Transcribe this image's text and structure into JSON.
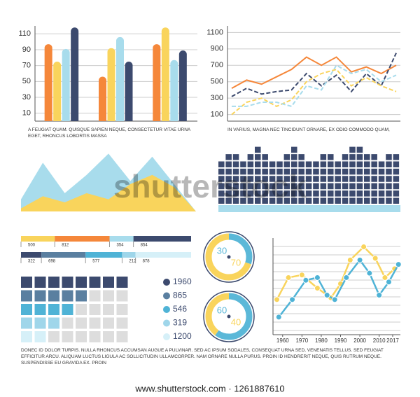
{
  "chart_data": [
    {
      "type": "bar",
      "caption": "A FEUGIAT QUAM. QUISQUE SAPIEN NEQUE, CONSECTETUR VITAE URNA EGET, RHONCUS LOBORTIS MASSA",
      "categories": [
        null,
        null,
        null
      ],
      "series": [
        {
          "color": "#f5873a",
          "values": [
            97,
            56,
            97
          ]
        },
        {
          "color": "#f9d45c",
          "values": [
            75,
            92,
            118
          ]
        },
        {
          "color": "#a8dcec",
          "values": [
            91,
            106,
            77
          ]
        },
        {
          "color": "#3c4a6e",
          "values": [
            118,
            75,
            89
          ]
        }
      ],
      "ylim": [
        0,
        120
      ],
      "yticks": [
        10,
        30,
        50,
        70,
        90,
        110
      ],
      "grid": true
    },
    {
      "type": "line",
      "caption": "IN VARIUS, MAGNA NEC TINCIDUNT ORNARE, EX ODIO COMMODO QUAM,",
      "series": [
        {
          "color": "#f5873a",
          "dashed": false,
          "values": [
            420,
            520,
            470,
            560,
            650,
            800,
            700,
            800,
            620,
            680,
            600,
            700
          ]
        },
        {
          "color": "#3c4a6e",
          "dashed": true,
          "values": [
            320,
            420,
            350,
            380,
            400,
            600,
            450,
            580,
            380,
            600,
            450,
            850
          ]
        },
        {
          "color": "#f9d45c",
          "dashed": true,
          "values": [
            100,
            250,
            300,
            200,
            280,
            500,
            600,
            650,
            450,
            550,
            450,
            380
          ]
        },
        {
          "color": "#a8dcec",
          "dashed": true,
          "values": [
            200,
            200,
            250,
            250,
            200,
            450,
            400,
            700,
            600,
            650,
            500,
            580
          ]
        }
      ],
      "ylim": [
        20,
        1180
      ],
      "yticks": [
        100,
        300,
        500,
        700,
        900,
        1100
      ],
      "grid": true
    },
    {
      "type": "area",
      "series": [
        {
          "color": "#a8dcec",
          "values": [
            20,
            80,
            30,
            60,
            95,
            50,
            90,
            45,
            0
          ]
        },
        {
          "color": "#f9d45c",
          "values": [
            5,
            25,
            15,
            30,
            20,
            45,
            60,
            40,
            0
          ]
        }
      ],
      "ylim": [
        0,
        100
      ]
    },
    {
      "type": "blocks",
      "color": "#3c4a6e",
      "base_color": "#a8dcec",
      "values": [
        6,
        7,
        7,
        6,
        7,
        8,
        7,
        6,
        6,
        7,
        8,
        7,
        6,
        6,
        7,
        7,
        6,
        7,
        8,
        8,
        7,
        7,
        6,
        7,
        7
      ]
    },
    {
      "type": "stacked_bar",
      "bars": [
        {
          "values": [
            500,
            812,
            354,
            854
          ],
          "colors": [
            "#f9d45c",
            "#f5873a",
            "#a8dcec",
            "#3c4a6e"
          ]
        },
        {
          "values": [
            322,
            698,
            577,
            212,
            878
          ],
          "colors": [
            "#3c4a6e",
            "#5a7fa0",
            "#4fb3d6",
            "#9fd6ea",
            "#d6f0f8"
          ]
        }
      ]
    },
    {
      "type": "waffle",
      "columns": 8,
      "values": [
        1960,
        865,
        546,
        319,
        1200
      ],
      "squares": [
        8,
        5,
        4,
        3,
        2
      ],
      "colors": [
        "#3c4a6e",
        "#5a7fa0",
        "#4fb3d6",
        "#9fd6ea",
        "#d6f0f8"
      ]
    },
    {
      "type": "donut",
      "values": [
        30,
        70
      ],
      "colors": [
        "#5bb8d8",
        "#f9d45c"
      ]
    },
    {
      "type": "donut",
      "values": [
        60,
        40
      ],
      "colors": [
        "#5bb8d8",
        "#f9d45c"
      ]
    },
    {
      "type": "xyline",
      "series": [
        {
          "color": "#f9d45c",
          "x": [
            1957,
            1963,
            1970,
            1978,
            1985,
            1990,
            1995,
            2002,
            2008,
            2013,
            2018
          ],
          "values": [
            4,
            6.5,
            6.8,
            5.3,
            4.2,
            5.8,
            8.5,
            10,
            8.7,
            6.5,
            7.5
          ]
        },
        {
          "color": "#4fb3d6",
          "x": [
            1958,
            1965,
            1972,
            1978,
            1983,
            1987,
            1993,
            2000,
            2005,
            2010,
            2015,
            2020
          ],
          "values": [
            2,
            4,
            6.2,
            6.5,
            4.5,
            4,
            6.5,
            8.5,
            7,
            4.5,
            6,
            8
          ]
        }
      ],
      "xlim": [
        1955,
        2021
      ],
      "xticks": [
        1960,
        1970,
        1980,
        1990,
        2000,
        2010,
        2017
      ],
      "ylim": [
        0,
        11
      ],
      "grid": true
    }
  ],
  "footer": "DONEC ID DOLOR TURPIS. NULLA RHONCUS ACCUMSAN AUGUE A PULVINAR. SED AC IPSUM SODALES, CONSEQUAT URNA SED, VENENATIS TELLUS. SED FEUGIAT EFFICITUR ARCU. ALIQUAM LUCTUS LIGULA AC SOLLICITUDIN ULLAMCORPER. NAM ORNARE NULLA PURUS. PROIN ID HENDRERIT NEQUE, QUIS RUTRUM NEQUE. SUSPENDISSE EU GRAVIDA EX. PROIN",
  "watermark": "shutterstock",
  "credit": "www.shutterstock.com · 1261887610"
}
